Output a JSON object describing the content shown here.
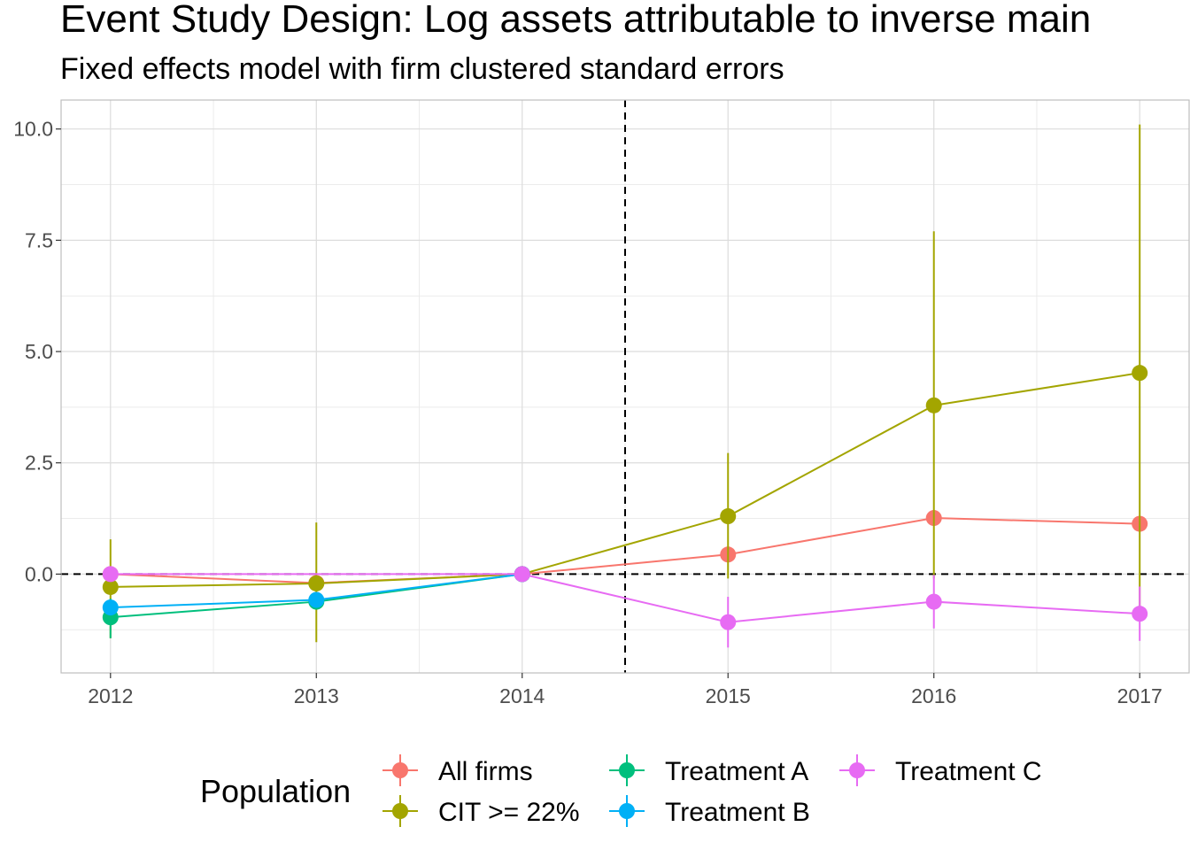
{
  "chart_data": {
    "type": "line",
    "title": "Event Study Design: Log assets attributable to inverse main",
    "subtitle": "Fixed effects model with firm clustered standard errors",
    "xlabel": "",
    "ylabel": "",
    "x": [
      2012,
      2013,
      2014,
      2015,
      2016,
      2017
    ],
    "x_tick_labels": [
      "2012",
      "2013",
      "2014",
      "2015",
      "2016",
      "2017"
    ],
    "y_ticks": [
      0.0,
      2.5,
      5.0,
      7.5,
      10.0
    ],
    "y_tick_labels": [
      "0.0",
      "2.5",
      "5.0",
      "7.5",
      "10.0"
    ],
    "xlim": [
      2011.76,
      2017.24
    ],
    "ylim": [
      -2.22,
      10.65
    ],
    "grid": true,
    "reference_lines": {
      "horizontal_y": 0,
      "vertical_x": 2014.5,
      "style": "dashed"
    },
    "legend": {
      "title": "Population",
      "placement": "bottom"
    },
    "series": [
      {
        "name": "All firms",
        "color": "#F8766D",
        "x": [
          2012,
          2013,
          2014,
          2015,
          2016,
          2017
        ],
        "values": [
          0.0,
          -0.2,
          0.0,
          0.44,
          1.26,
          1.13
        ],
        "lower": [
          null,
          null,
          null,
          null,
          null,
          null
        ],
        "upper": [
          null,
          null,
          null,
          null,
          null,
          null
        ]
      },
      {
        "name": "CIT >= 22%",
        "color": "#A3A500",
        "x": [
          2012,
          2013,
          2014,
          2015,
          2016,
          2017
        ],
        "values": [
          -0.29,
          -0.21,
          0.0,
          1.3,
          3.79,
          4.52
        ],
        "lower": [
          -1.44,
          -1.53,
          null,
          -0.1,
          -0.1,
          -0.95
        ],
        "upper": [
          0.78,
          1.16,
          null,
          2.72,
          7.7,
          10.1
        ]
      },
      {
        "name": "Treatment A",
        "color": "#00BF7D",
        "x": [
          2012,
          2013,
          2014
        ],
        "values": [
          -0.97,
          -0.62,
          0.0
        ],
        "lower": [
          -1.44,
          -0.72,
          null
        ],
        "upper": [
          -0.55,
          -0.5,
          null
        ]
      },
      {
        "name": "Treatment B",
        "color": "#00B0F6",
        "x": [
          2012,
          2013,
          2014
        ],
        "values": [
          -0.75,
          -0.58,
          0.0
        ],
        "lower": [
          -0.82,
          -0.64,
          null
        ],
        "upper": [
          -0.68,
          -0.52,
          null
        ]
      },
      {
        "name": "Treatment C",
        "color": "#E76BF3",
        "x": [
          2012,
          2014,
          2015,
          2016,
          2017
        ],
        "values": [
          0.0,
          0.0,
          -1.08,
          -0.62,
          -0.89
        ],
        "lower": [
          null,
          null,
          -1.65,
          -1.22,
          -1.5
        ],
        "upper": [
          null,
          null,
          -0.51,
          -0.02,
          -0.28
        ]
      }
    ]
  }
}
